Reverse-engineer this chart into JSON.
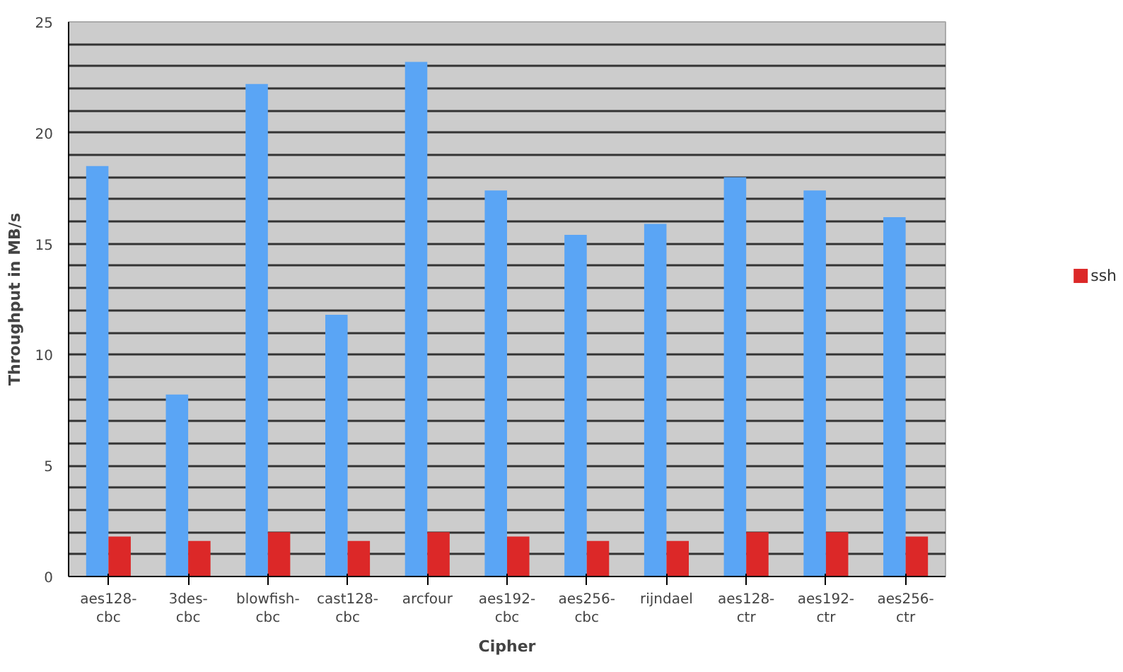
{
  "chart_data": {
    "type": "bar",
    "xlabel": "Cipher",
    "ylabel": "Throughput in MB/s",
    "categories": [
      "aes128-cbc",
      "3des-cbc",
      "blowfish-cbc",
      "cast128-cbc",
      "arcfour",
      "aes192-cbc",
      "aes256-cbc",
      "rijndael",
      "aes128-ctr",
      "aes192-ctr",
      "aes256-ctr"
    ],
    "series": [
      {
        "color": "#5aa5f5",
        "values": [
          18.5,
          8.2,
          22.2,
          11.8,
          23.2,
          17.4,
          15.4,
          15.9,
          18.0,
          17.4,
          16.2
        ]
      },
      {
        "name": "ssh",
        "color": "#dc2828",
        "values": [
          1.8,
          1.6,
          2.0,
          1.6,
          2.0,
          1.8,
          1.6,
          1.6,
          2.0,
          2.0,
          1.8
        ]
      }
    ],
    "ylim": [
      0,
      25
    ],
    "yticks": [
      0,
      {
        "value": 1,
        "label": null
      },
      {
        "value": 2,
        "label": null
      },
      {
        "value": 3,
        "label": null
      },
      {
        "value": 4,
        "label": null
      },
      5,
      {
        "value": 6,
        "label": null
      },
      {
        "value": 7,
        "label": null
      },
      {
        "value": 8,
        "label": null
      },
      {
        "value": 9,
        "label": null
      },
      10,
      {
        "value": 11,
        "label": null
      },
      {
        "value": 12,
        "label": null
      },
      {
        "value": 13,
        "label": null
      },
      {
        "value": 14,
        "label": null
      },
      15,
      {
        "value": 16,
        "label": null
      },
      {
        "value": 17,
        "label": null
      },
      {
        "value": 18,
        "label": null
      },
      {
        "value": 19,
        "label": null
      },
      20,
      {
        "value": 21,
        "label": null
      },
      {
        "value": 22,
        "label": null
      },
      {
        "value": 23,
        "label": null
      },
      {
        "value": 24,
        "label": null
      },
      25
    ],
    "grid": "y",
    "legend": "right"
  }
}
